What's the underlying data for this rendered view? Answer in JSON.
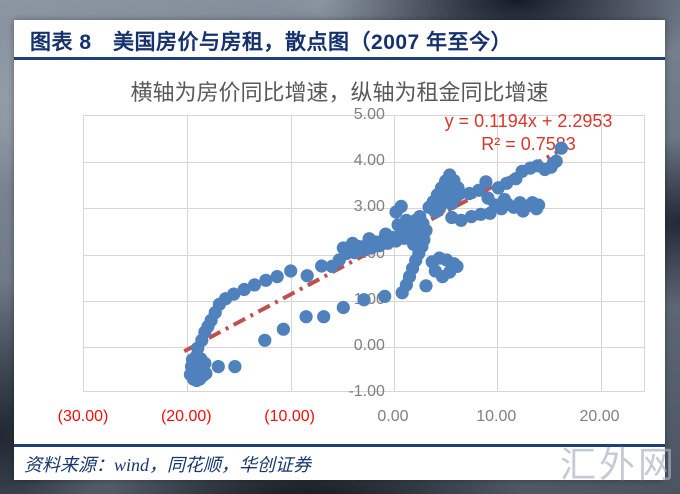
{
  "figure": {
    "title": "图表 8　美国房价与房租，散点图（2007 年至今）",
    "source_note": "资料来源：wind，同花顺，华创证券",
    "watermark": "汇外网"
  },
  "chart_data": {
    "type": "scatter",
    "title": "横轴为房价同比增速，纵轴为租金同比增速",
    "xlabel": "房价同比增速",
    "ylabel": "租金同比增速",
    "annotations": {
      "equation": "y = 0.1194x + 2.2953",
      "r_squared": "R² = 0.7583"
    },
    "xlim": [
      -30,
      24.4
    ],
    "ylim": [
      -1,
      5
    ],
    "grid": true,
    "legend": "none",
    "x_ticks": [
      {
        "value": -30,
        "label": "(30.00)"
      },
      {
        "value": -20,
        "label": "(20.00)"
      },
      {
        "value": -10,
        "label": "(10.00)"
      },
      {
        "value": 0,
        "label": "0.00"
      },
      {
        "value": 10,
        "label": "10.00"
      },
      {
        "value": 20,
        "label": "20.00"
      }
    ],
    "y_ticks": [
      {
        "value": 5,
        "label": "5.00"
      },
      {
        "value": 4,
        "label": "4.00"
      },
      {
        "value": 3,
        "label": "3.00"
      },
      {
        "value": 2,
        "label": "2.00"
      },
      {
        "value": 1,
        "label": "1.00"
      },
      {
        "value": 0,
        "label": "0.00"
      },
      {
        "value": -1,
        "label": "-1.00"
      }
    ],
    "colors": {
      "point": "#4F81BD",
      "trendline": "#C0504D",
      "equation_text": "#D8382C",
      "negative_tick_text": "#F40B0B",
      "tick_text": "#7F7F7F",
      "grid": "#D6D6D6",
      "title_navy": "#15316E",
      "subtitle_gray": "#595959"
    },
    "trendline": {
      "slope": 0.1194,
      "intercept": 2.2953,
      "x_start": -20.2,
      "x_end": 16.6,
      "style": "dash-dot"
    },
    "point_radius": 6.6,
    "points": [
      [
        -19.6,
        -0.62
      ],
      [
        -19.3,
        -0.72
      ],
      [
        -19.0,
        -0.75
      ],
      [
        -18.7,
        -0.72
      ],
      [
        -18.4,
        -0.65
      ],
      [
        -18.1,
        -0.6
      ],
      [
        -19.5,
        -0.45
      ],
      [
        -19.2,
        -0.52
      ],
      [
        -18.8,
        -0.5
      ],
      [
        -18.5,
        -0.42
      ],
      [
        -19.4,
        -0.3
      ],
      [
        -19.0,
        -0.22
      ],
      [
        -18.6,
        -0.28
      ],
      [
        -18.2,
        -0.38
      ],
      [
        -18.9,
        -0.05
      ],
      [
        -18.5,
        0.12
      ],
      [
        -18.2,
        0.3
      ],
      [
        -17.9,
        0.42
      ],
      [
        -16.9,
        -0.45
      ],
      [
        -15.3,
        -0.45
      ],
      [
        -17.6,
        0.55
      ],
      [
        -17.2,
        0.72
      ],
      [
        -16.8,
        0.9
      ],
      [
        -16.2,
        1.02
      ],
      [
        -15.4,
        1.12
      ],
      [
        -14.4,
        1.22
      ],
      [
        -13.4,
        1.32
      ],
      [
        -12.3,
        1.42
      ],
      [
        -11.2,
        1.5
      ],
      [
        -9.9,
        1.62
      ],
      [
        -8.3,
        1.52
      ],
      [
        -6.9,
        1.73
      ],
      [
        -5.9,
        1.72
      ],
      [
        -5.2,
        1.86
      ],
      [
        -12.4,
        0.12
      ],
      [
        -10.6,
        0.36
      ],
      [
        -8.4,
        0.63
      ],
      [
        -6.7,
        0.63
      ],
      [
        -4.8,
        0.83
      ],
      [
        -2.8,
        1.0
      ],
      [
        -0.8,
        1.07
      ],
      [
        0.9,
        1.15
      ],
      [
        1.3,
        1.32
      ],
      [
        1.6,
        1.5
      ],
      [
        1.9,
        1.68
      ],
      [
        2.2,
        1.85
      ],
      [
        2.5,
        2.0
      ],
      [
        2.8,
        2.15
      ],
      [
        3.0,
        2.3
      ],
      [
        3.2,
        2.5
      ],
      [
        2.9,
        2.65
      ],
      [
        2.6,
        2.8
      ],
      [
        2.2,
        2.72
      ],
      [
        1.9,
        2.55
      ],
      [
        2.0,
        2.2
      ],
      [
        2.3,
        2.4
      ],
      [
        3.8,
        1.82
      ],
      [
        4.5,
        1.9
      ],
      [
        5.2,
        1.86
      ],
      [
        5.9,
        1.78
      ],
      [
        5.5,
        1.6
      ],
      [
        4.8,
        1.5
      ],
      [
        4.1,
        1.62
      ],
      [
        3.2,
        1.3
      ],
      [
        6.2,
        1.72
      ],
      [
        -4.8,
        2.12
      ],
      [
        -4.5,
        2.0
      ],
      [
        -4.1,
        2.1
      ],
      [
        -3.7,
        2.02
      ],
      [
        -3.3,
        2.15
      ],
      [
        -2.9,
        2.07
      ],
      [
        -2.5,
        2.2
      ],
      [
        -2.1,
        2.12
      ],
      [
        -1.7,
        2.25
      ],
      [
        -1.3,
        2.17
      ],
      [
        -0.9,
        2.3
      ],
      [
        -0.5,
        2.22
      ],
      [
        -0.1,
        2.35
      ],
      [
        0.3,
        2.27
      ],
      [
        0.7,
        2.4
      ],
      [
        1.1,
        2.33
      ],
      [
        1.5,
        2.45
      ],
      [
        -3.9,
        2.22
      ],
      [
        -2.3,
        2.32
      ],
      [
        -0.7,
        2.42
      ],
      [
        0.9,
        2.52
      ],
      [
        1.8,
        2.42
      ],
      [
        0.3,
        2.9
      ],
      [
        0.8,
        3.02
      ],
      [
        1.3,
        2.72
      ],
      [
        0.5,
        2.62
      ],
      [
        3.5,
        3.0
      ],
      [
        3.9,
        3.12
      ],
      [
        4.3,
        3.27
      ],
      [
        4.7,
        3.42
      ],
      [
        5.1,
        3.57
      ],
      [
        5.5,
        3.7
      ],
      [
        5.9,
        3.58
      ],
      [
        6.3,
        3.42
      ],
      [
        6.1,
        3.22
      ],
      [
        5.7,
        3.08
      ],
      [
        5.3,
        3.22
      ],
      [
        4.9,
        3.1
      ],
      [
        4.5,
        2.97
      ],
      [
        4.1,
        2.9
      ],
      [
        6.5,
        3.3
      ],
      [
        5.0,
        3.35
      ],
      [
        4.4,
        3.12
      ],
      [
        5.6,
        3.4
      ],
      [
        5.7,
        2.78
      ],
      [
        6.6,
        2.72
      ],
      [
        7.6,
        2.8
      ],
      [
        8.5,
        2.85
      ],
      [
        9.4,
        2.87
      ],
      [
        9.9,
        3.05
      ],
      [
        10.5,
        2.97
      ],
      [
        11.1,
        3.07
      ],
      [
        11.7,
        3.0
      ],
      [
        12.3,
        3.1
      ],
      [
        12.9,
        3.02
      ],
      [
        13.5,
        3.1
      ],
      [
        14.1,
        3.05
      ],
      [
        10.8,
        3.17
      ],
      [
        12.6,
        2.92
      ],
      [
        13.9,
        2.97
      ],
      [
        9.2,
        3.2
      ],
      [
        7.4,
        3.3
      ],
      [
        8.3,
        3.37
      ],
      [
        9.0,
        3.55
      ],
      [
        10.2,
        3.42
      ],
      [
        11.0,
        3.52
      ],
      [
        11.9,
        3.62
      ],
      [
        12.5,
        3.78
      ],
      [
        13.3,
        3.85
      ],
      [
        14.0,
        3.9
      ],
      [
        14.7,
        3.82
      ],
      [
        15.3,
        3.87
      ],
      [
        15.8,
        4.0
      ],
      [
        15.5,
        3.95
      ],
      [
        16.3,
        4.28
      ]
    ]
  }
}
